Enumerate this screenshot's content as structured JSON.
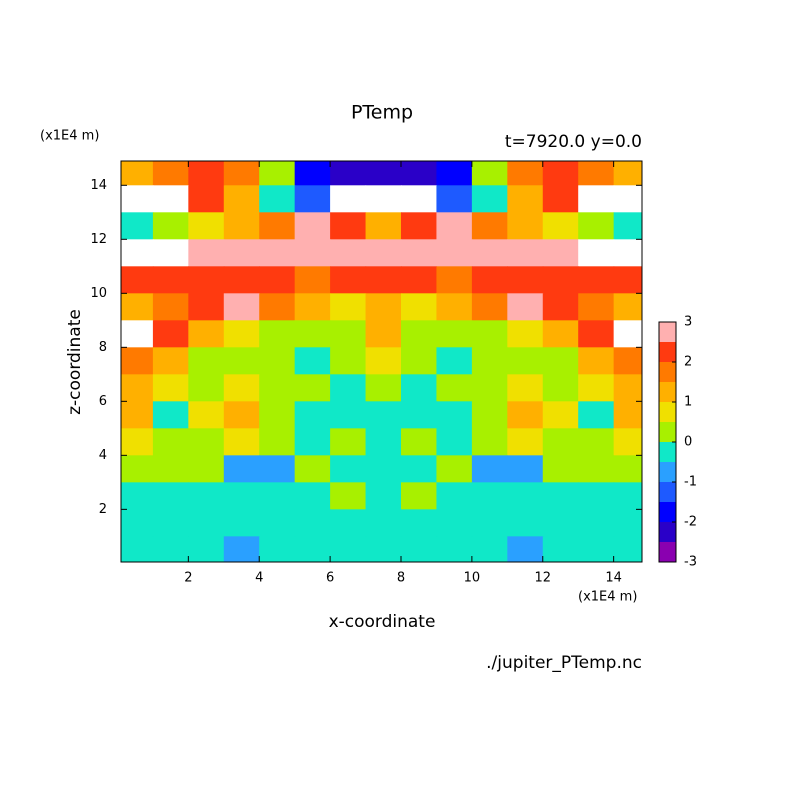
{
  "chart_data": {
    "type": "contour",
    "title": "PTemp",
    "subtitle": "t=7920.0 y=0.0",
    "y_unit": "(x1E4 m)",
    "x_unit": "(x1E4 m)",
    "x_label": "x-coordinate",
    "y_label": "z-coordinate",
    "source": "./jupiter_PTemp.nc",
    "xlim": [
      0.1,
      14.8
    ],
    "ylim": [
      0.05,
      14.9
    ],
    "xticks": [
      2,
      4,
      6,
      8,
      10,
      12,
      14
    ],
    "yticks": [
      2,
      4,
      6,
      8,
      10,
      12,
      14
    ],
    "x": [
      0.5,
      1.5,
      2.5,
      3.5,
      4.5,
      5.5,
      6.5,
      7.5,
      8.5,
      9.5,
      10.5,
      11.5,
      12.5,
      13.5,
      14.5
    ],
    "y": [
      14.5,
      13.5,
      12.5,
      11.5,
      10.5,
      9.5,
      8.5,
      7.5,
      6.5,
      5.5,
      4.5,
      3.5,
      2.5,
      1.5,
      0.5
    ],
    "z": [
      [
        1.2,
        1.7,
        2.2,
        1.8,
        0.3,
        -1.7,
        -2.2,
        -2.2,
        -2.2,
        -1.7,
        0.3,
        1.8,
        2.2,
        1.7,
        1.2
      ],
      [
        3.5,
        3.5,
        2.2,
        1.2,
        -0.3,
        -1.2,
        3.5,
        3.5,
        3.5,
        -1.2,
        -0.3,
        1.2,
        2.2,
        3.5,
        3.5
      ],
      [
        -0.3,
        0.3,
        0.8,
        1.3,
        1.8,
        2.7,
        2.2,
        1.2,
        2.2,
        2.7,
        1.8,
        1.3,
        0.8,
        0.3,
        -0.3
      ],
      [
        3.5,
        3.5,
        2.7,
        2.7,
        2.7,
        2.7,
        2.7,
        2.7,
        2.7,
        2.7,
        2.7,
        2.7,
        2.7,
        3.5,
        3.5
      ],
      [
        2.2,
        2.2,
        2.2,
        2.2,
        2.2,
        1.7,
        2.2,
        2.2,
        2.2,
        1.7,
        2.2,
        2.2,
        2.2,
        2.2,
        2.2
      ],
      [
        1.3,
        1.7,
        2.2,
        2.7,
        1.7,
        1.3,
        0.8,
        1.3,
        0.8,
        1.3,
        1.7,
        2.7,
        2.2,
        1.7,
        1.3
      ],
      [
        3.2,
        2.2,
        1.3,
        0.8,
        0.3,
        0.3,
        0.3,
        1.3,
        0.3,
        0.3,
        0.3,
        0.8,
        1.3,
        2.2,
        3.2
      ],
      [
        1.7,
        1.3,
        0.3,
        0.3,
        0.3,
        -0.2,
        0.3,
        0.8,
        0.3,
        -0.2,
        0.3,
        0.3,
        0.3,
        1.3,
        1.7
      ],
      [
        1.3,
        0.8,
        0.3,
        0.8,
        0.3,
        0.3,
        -0.2,
        0.3,
        -0.2,
        0.3,
        0.3,
        0.8,
        0.3,
        0.8,
        1.3
      ],
      [
        1.3,
        -0.2,
        0.8,
        1.3,
        0.3,
        -0.2,
        -0.2,
        -0.2,
        -0.2,
        -0.2,
        0.3,
        1.3,
        0.8,
        -0.2,
        1.3
      ],
      [
        0.8,
        0.3,
        0.3,
        0.8,
        0.3,
        -0.2,
        0.3,
        -0.2,
        0.3,
        -0.2,
        0.3,
        0.8,
        0.3,
        0.3,
        0.8
      ],
      [
        0.3,
        0.3,
        0.3,
        -0.7,
        -0.7,
        0.3,
        -0.2,
        -0.2,
        -0.2,
        0.3,
        -0.7,
        -0.7,
        0.3,
        0.3,
        0.3
      ],
      [
        -0.2,
        -0.2,
        -0.2,
        -0.2,
        -0.2,
        -0.2,
        0.3,
        -0.2,
        0.3,
        -0.2,
        -0.2,
        -0.2,
        -0.2,
        -0.2,
        -0.2
      ],
      [
        -0.2,
        -0.2,
        -0.2,
        -0.2,
        -0.2,
        -0.2,
        -0.2,
        -0.2,
        -0.2,
        -0.2,
        -0.2,
        -0.2,
        -0.2,
        -0.2,
        -0.2
      ],
      [
        -0.2,
        -0.2,
        -0.2,
        -0.7,
        -0.2,
        -0.2,
        -0.2,
        -0.2,
        -0.2,
        -0.2,
        -0.2,
        -0.7,
        -0.2,
        -0.2,
        -0.2
      ]
    ],
    "levels": [
      -3,
      -2.5,
      -2,
      -1.5,
      -1,
      -0.5,
      0,
      0.5,
      1,
      1.5,
      2,
      2.5,
      3
    ],
    "colors": [
      "#8a00b0",
      "#2a00c8",
      "#0000ff",
      "#1e5aff",
      "#2aa0ff",
      "#10e8c8",
      "#a8f000",
      "#f0e000",
      "#ffb000",
      "#ff7a00",
      "#ff3a10",
      "#ffb0b0"
    ],
    "over_color": "#ffffff",
    "under_color": "#8a00b0",
    "cbar_ticks": [
      -3,
      -2,
      -1,
      0,
      1,
      2,
      3
    ]
  }
}
